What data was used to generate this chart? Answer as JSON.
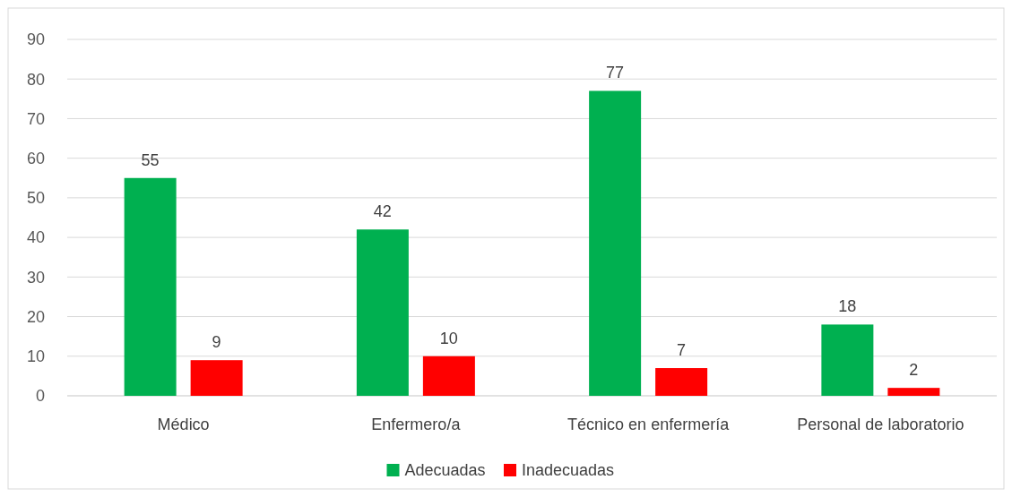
{
  "chart_data": {
    "type": "bar",
    "categories": [
      "Médico",
      "Enfermero/a",
      "Técnico en enfermería",
      "Personal de laboratorio"
    ],
    "series": [
      {
        "name": "Adecuadas",
        "color": "#00b050",
        "values": [
          55,
          42,
          77,
          18
        ]
      },
      {
        "name": "Inadecuadas",
        "color": "#ff0000",
        "values": [
          9,
          10,
          7,
          2
        ]
      }
    ],
    "ylim": [
      0,
      90
    ],
    "yticks": [
      0,
      10,
      20,
      30,
      40,
      50,
      60,
      70,
      80,
      90
    ],
    "grid": "y",
    "legend": "bottom",
    "data_labels": true
  }
}
